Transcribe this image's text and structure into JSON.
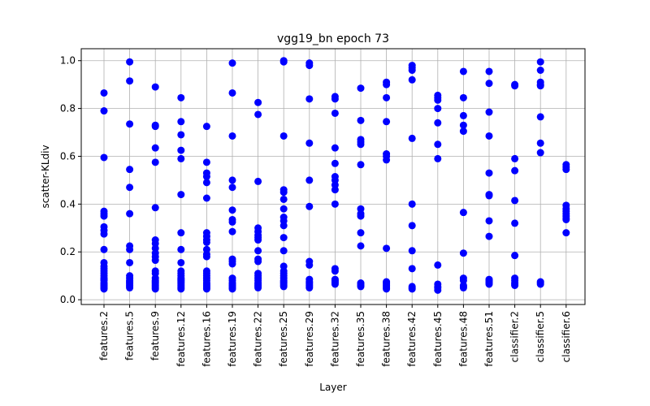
{
  "chart_data": {
    "type": "scatter",
    "title": "vgg19_bn epoch 73",
    "xlabel": "Layer",
    "ylabel": "scatter-KLdiv",
    "ylim": [
      -0.02,
      1.05
    ],
    "yticks": [
      "0.0",
      "0.2",
      "0.4",
      "0.6",
      "0.8",
      "1.0"
    ],
    "grid": true,
    "marker_color": "#0000ff",
    "categories": [
      "features.2",
      "features.5",
      "features.9",
      "features.12",
      "features.16",
      "features.19",
      "features.22",
      "features.25",
      "features.29",
      "features.32",
      "features.35",
      "features.38",
      "features.42",
      "features.45",
      "features.48",
      "features.51",
      "classifier.2",
      "classifier.5",
      "classifier.6"
    ],
    "points": [
      [
        0.865,
        0.79,
        0.595,
        0.37,
        0.36,
        0.35,
        0.305,
        0.29,
        0.275,
        0.21,
        0.155,
        0.14,
        0.13,
        0.12,
        0.11,
        0.1,
        0.09,
        0.085,
        0.08,
        0.07,
        0.065,
        0.06,
        0.055,
        0.05,
        0.045
      ],
      [
        0.995,
        0.915,
        0.735,
        0.545,
        0.47,
        0.36,
        0.225,
        0.21,
        0.155,
        0.1,
        0.09,
        0.08,
        0.075,
        0.07,
        0.065,
        0.06,
        0.055,
        0.05
      ],
      [
        0.89,
        0.73,
        0.725,
        0.635,
        0.575,
        0.385,
        0.25,
        0.235,
        0.215,
        0.195,
        0.18,
        0.165,
        0.12,
        0.11,
        0.09,
        0.08,
        0.075,
        0.07,
        0.065,
        0.06,
        0.055,
        0.05,
        0.045
      ],
      [
        0.845,
        0.745,
        0.69,
        0.625,
        0.59,
        0.44,
        0.28,
        0.21,
        0.155,
        0.12,
        0.11,
        0.1,
        0.09,
        0.085,
        0.08,
        0.075,
        0.07,
        0.065,
        0.06,
        0.055,
        0.05,
        0.045
      ],
      [
        0.725,
        0.575,
        0.53,
        0.515,
        0.49,
        0.425,
        0.28,
        0.265,
        0.25,
        0.24,
        0.21,
        0.19,
        0.18,
        0.12,
        0.11,
        0.1,
        0.09,
        0.08,
        0.07,
        0.065,
        0.06,
        0.055,
        0.05,
        0.045
      ],
      [
        0.99,
        0.865,
        0.685,
        0.5,
        0.47,
        0.375,
        0.335,
        0.325,
        0.285,
        0.17,
        0.16,
        0.15,
        0.09,
        0.08,
        0.07,
        0.065,
        0.06,
        0.055,
        0.05,
        0.045
      ],
      [
        0.825,
        0.775,
        0.495,
        0.3,
        0.285,
        0.27,
        0.26,
        0.25,
        0.205,
        0.17,
        0.16,
        0.11,
        0.1,
        0.09,
        0.08,
        0.07,
        0.065,
        0.06,
        0.055,
        0.05
      ],
      [
        1.0,
        0.995,
        0.685,
        0.46,
        0.45,
        0.42,
        0.38,
        0.345,
        0.33,
        0.31,
        0.26,
        0.205,
        0.14,
        0.12,
        0.11,
        0.1,
        0.09,
        0.08,
        0.075,
        0.07,
        0.065,
        0.06,
        0.055
      ],
      [
        0.99,
        0.98,
        0.84,
        0.655,
        0.5,
        0.39,
        0.16,
        0.145,
        0.085,
        0.075,
        0.07,
        0.065,
        0.06,
        0.055,
        0.05
      ],
      [
        0.85,
        0.84,
        0.78,
        0.635,
        0.57,
        0.515,
        0.5,
        0.48,
        0.46,
        0.4,
        0.13,
        0.12,
        0.085,
        0.08,
        0.075,
        0.07,
        0.065
      ],
      [
        0.885,
        0.75,
        0.67,
        0.66,
        0.65,
        0.565,
        0.38,
        0.36,
        0.35,
        0.28,
        0.225,
        0.07,
        0.065,
        0.06,
        0.055
      ],
      [
        0.91,
        0.9,
        0.845,
        0.745,
        0.61,
        0.6,
        0.585,
        0.215,
        0.075,
        0.07,
        0.065,
        0.06,
        0.055,
        0.05,
        0.045
      ],
      [
        0.98,
        0.97,
        0.96,
        0.92,
        0.675,
        0.4,
        0.31,
        0.205,
        0.13,
        0.055,
        0.05,
        0.045
      ],
      [
        0.855,
        0.845,
        0.835,
        0.8,
        0.74,
        0.65,
        0.59,
        0.145,
        0.065,
        0.055,
        0.05,
        0.04
      ],
      [
        0.955,
        0.845,
        0.77,
        0.73,
        0.705,
        0.365,
        0.195,
        0.09,
        0.08,
        0.06,
        0.055,
        0.05
      ],
      [
        0.955,
        0.905,
        0.785,
        0.685,
        0.53,
        0.44,
        0.435,
        0.33,
        0.265,
        0.085,
        0.08,
        0.075,
        0.07,
        0.065
      ],
      [
        0.9,
        0.895,
        0.59,
        0.54,
        0.415,
        0.32,
        0.185,
        0.09,
        0.08,
        0.07,
        0.065,
        0.06
      ],
      [
        0.995,
        0.96,
        0.91,
        0.9,
        0.895,
        0.765,
        0.655,
        0.615,
        0.075,
        0.07,
        0.065
      ],
      [
        0.565,
        0.555,
        0.545,
        0.395,
        0.38,
        0.37,
        0.36,
        0.35,
        0.34,
        0.335,
        0.28
      ]
    ]
  }
}
